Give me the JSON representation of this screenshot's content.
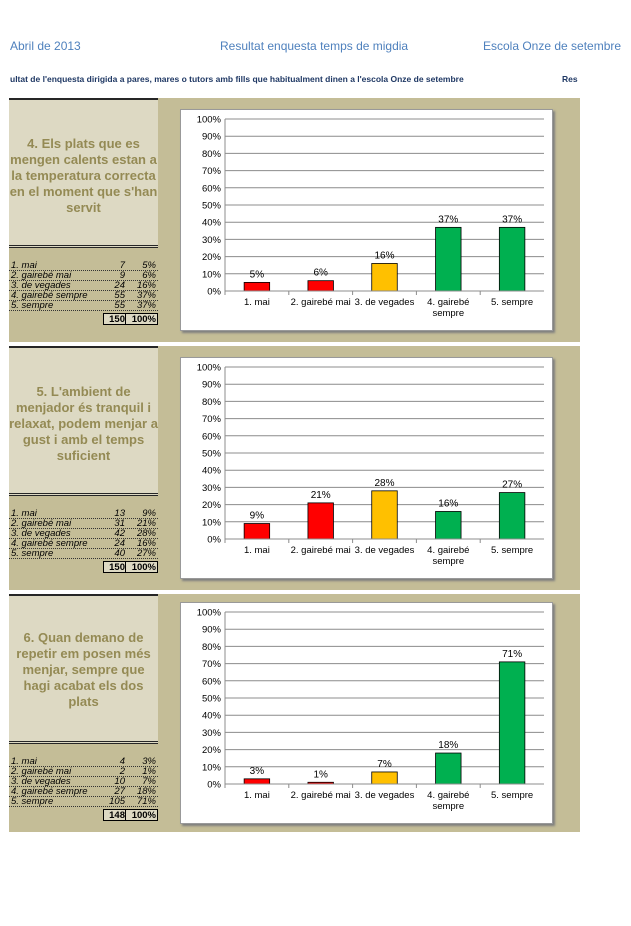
{
  "header": {
    "date": "Abril  de 2013",
    "title": "Resultat enquesta temps de migdia",
    "school": "Escola Onze de setembre"
  },
  "subheader": {
    "text": "ultat de l'enquesta dirigida a pares, mares o tutors amb fills que habitualment dinen a l'escola Onze de setembre",
    "right_text": "Res"
  },
  "chart_data": [
    {
      "type": "bar",
      "title": "4. Els plats que es mengen calents estan a la temperatura correcta en el moment que s'han servit",
      "categories": [
        "1. mai",
        "2. gairebé mai",
        "3. de vegades",
        "4. gairebé sempre",
        "5. sempre"
      ],
      "counts": [
        7,
        9,
        24,
        55,
        55
      ],
      "percents": [
        "5%",
        "6%",
        "16%",
        "37%",
        "37%"
      ],
      "values": [
        5,
        6,
        16,
        37,
        37
      ],
      "total_count": 150,
      "total_percent": "100%",
      "ylim": [
        0,
        100
      ],
      "yticks": [
        "0%",
        "10%",
        "20%",
        "30%",
        "40%",
        "50%",
        "60%",
        "70%",
        "80%",
        "90%",
        "100%"
      ],
      "grid": true
    },
    {
      "type": "bar",
      "title": "5. L'ambient de menjador és tranquil i relaxat, podem menjar a gust i amb el temps suficient",
      "categories": [
        "1. mai",
        "2. gairebé mai",
        "3. de vegades",
        "4. gairebé sempre",
        "5. sempre"
      ],
      "counts": [
        13,
        31,
        42,
        24,
        40
      ],
      "percents": [
        "9%",
        "21%",
        "28%",
        "16%",
        "27%"
      ],
      "values": [
        9,
        21,
        28,
        16,
        27
      ],
      "total_count": 150,
      "total_percent": "100%",
      "ylim": [
        0,
        100
      ],
      "yticks": [
        "0%",
        "10%",
        "20%",
        "30%",
        "40%",
        "50%",
        "60%",
        "70%",
        "80%",
        "90%",
        "100%"
      ],
      "grid": true
    },
    {
      "type": "bar",
      "title": "6. Quan demano de repetir em posen més menjar, sempre que hagi acabat els dos plats",
      "categories": [
        "1. mai",
        "2. gairebé mai",
        "3. de vegades",
        "4. gairebé sempre",
        "5. sempre"
      ],
      "counts": [
        4,
        2,
        10,
        27,
        105
      ],
      "percents": [
        "3%",
        "1%",
        "7%",
        "18%",
        "71%"
      ],
      "values": [
        3,
        1,
        7,
        18,
        71
      ],
      "total_count": 148,
      "total_percent": "100%",
      "ylim": [
        0,
        100
      ],
      "yticks": [
        "0%",
        "10%",
        "20%",
        "30%",
        "40%",
        "50%",
        "60%",
        "70%",
        "80%",
        "90%",
        "100%"
      ],
      "grid": true
    }
  ],
  "colors": {
    "bar_low": "#ff0000",
    "bar_mid": "#ffc000",
    "bar_high": "#00b050",
    "question_text": "#948a54",
    "panel_bg": "#c4bd97",
    "question_bg": "#ddd9c3",
    "header_text": "#4f81bd"
  }
}
